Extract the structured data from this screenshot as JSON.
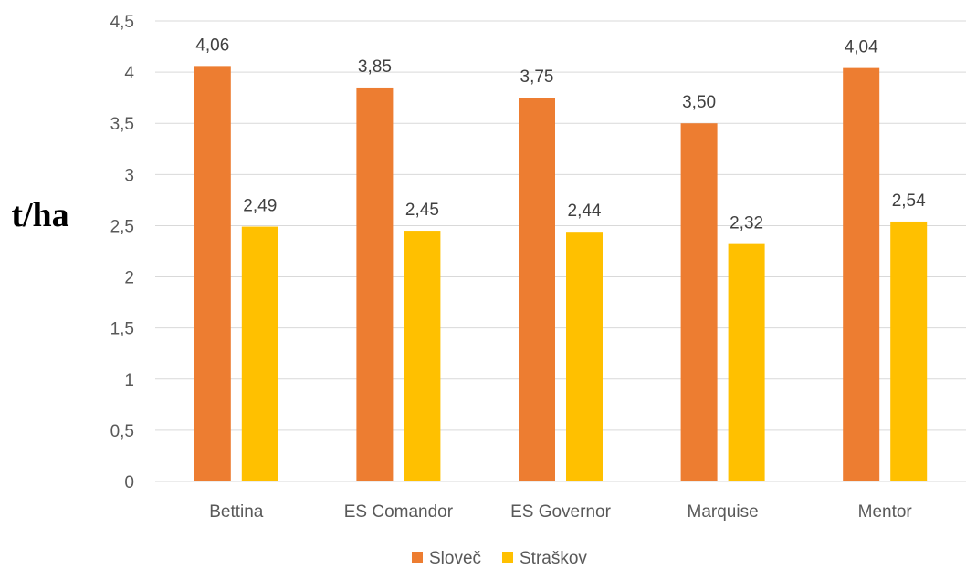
{
  "chart_data": {
    "type": "bar",
    "title": "",
    "xlabel": "",
    "ylabel": "t/ha",
    "categories": [
      "Bettina",
      "ES Comandor",
      "ES Governor",
      "Marquise",
      "Mentor"
    ],
    "series": [
      {
        "name": "Sloveč",
        "color": "#ED7D31",
        "values": [
          4.06,
          3.85,
          3.75,
          3.5,
          4.04
        ],
        "labels": [
          "4,06",
          "3,85",
          "3,75",
          "3,50",
          "4,04"
        ]
      },
      {
        "name": "Straškov",
        "color": "#FFC000",
        "values": [
          2.49,
          2.45,
          2.44,
          2.32,
          2.54
        ],
        "labels": [
          "2,49",
          "2,45",
          "2,44",
          "2,32",
          "2,54"
        ]
      }
    ],
    "ylim": [
      0,
      4.5
    ],
    "yticks": [
      0,
      0.5,
      1,
      1.5,
      2,
      2.5,
      3,
      3.5,
      4,
      4.5
    ],
    "ytick_labels": [
      "0",
      "0,5",
      "1",
      "1,5",
      "2",
      "2,5",
      "3",
      "3,5",
      "4",
      "4,5"
    ],
    "grid": true,
    "legend_position": "bottom"
  }
}
